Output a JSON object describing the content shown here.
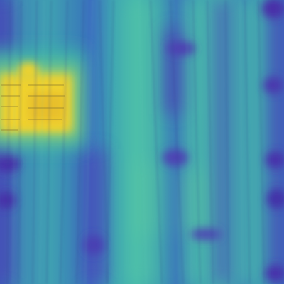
{
  "image": {
    "colors": {
      "base": "#3f9fb2",
      "low": "#4a3fb0",
      "mid": "#3fb0ad",
      "high": "#f2d42a",
      "peak": "#e8c02a"
    }
  }
}
